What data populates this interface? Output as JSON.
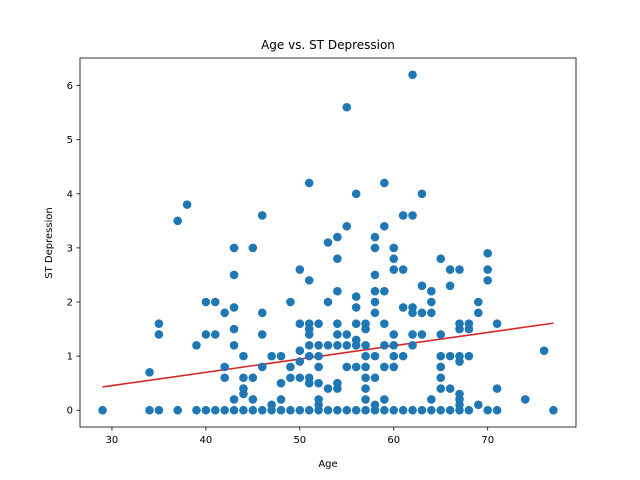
{
  "chart_data": {
    "type": "scatter",
    "title": "Age vs. ST Depression",
    "xlabel": "Age",
    "ylabel": "ST Depression",
    "xlim": [
      26.6,
      79.4
    ],
    "ylim": [
      -0.31,
      6.51
    ],
    "xticks": [
      30,
      40,
      50,
      60,
      70
    ],
    "yticks": [
      0,
      1,
      2,
      3,
      4,
      5,
      6
    ],
    "grid": false,
    "point_color": "#1f77b4",
    "trend_color": "#d62728",
    "trend_line": {
      "x": [
        29,
        77
      ],
      "y": [
        0.43,
        1.61
      ]
    },
    "points": [
      [
        29,
        0
      ],
      [
        34,
        0
      ],
      [
        34,
        0.7
      ],
      [
        35,
        0
      ],
      [
        35,
        1.4
      ],
      [
        35,
        1.6
      ],
      [
        37,
        0
      ],
      [
        37,
        3.5
      ],
      [
        38,
        3.8
      ],
      [
        39,
        0
      ],
      [
        39,
        1.2
      ],
      [
        40,
        0
      ],
      [
        40,
        1.4
      ],
      [
        40,
        2
      ],
      [
        41,
        0
      ],
      [
        41,
        1.4
      ],
      [
        41,
        2
      ],
      [
        42,
        0
      ],
      [
        42,
        0.6
      ],
      [
        42,
        0.8
      ],
      [
        42,
        1.8
      ],
      [
        43,
        0
      ],
      [
        43,
        0.2
      ],
      [
        43,
        1.2
      ],
      [
        43,
        1.5
      ],
      [
        43,
        1.9
      ],
      [
        43,
        2.5
      ],
      [
        43,
        3
      ],
      [
        44,
        0
      ],
      [
        44,
        0.3
      ],
      [
        44,
        0.4
      ],
      [
        44,
        0.6
      ],
      [
        44,
        1
      ],
      [
        45,
        0
      ],
      [
        45,
        0.2
      ],
      [
        45,
        0.6
      ],
      [
        45,
        3
      ],
      [
        46,
        0
      ],
      [
        46,
        0.8
      ],
      [
        46,
        1.4
      ],
      [
        46,
        1.8
      ],
      [
        46,
        3.6
      ],
      [
        47,
        0
      ],
      [
        47,
        0.1
      ],
      [
        47,
        1
      ],
      [
        48,
        0
      ],
      [
        48,
        0.2
      ],
      [
        48,
        0.5
      ],
      [
        48,
        1
      ],
      [
        49,
        0
      ],
      [
        49,
        0.6
      ],
      [
        49,
        0.8
      ],
      [
        49,
        2
      ],
      [
        50,
        0
      ],
      [
        50,
        0.6
      ],
      [
        50,
        0.9
      ],
      [
        50,
        1.1
      ],
      [
        50,
        1.6
      ],
      [
        50,
        2.6
      ],
      [
        51,
        0
      ],
      [
        51,
        0.5
      ],
      [
        51,
        0.6
      ],
      [
        51,
        1
      ],
      [
        51,
        1.2
      ],
      [
        51,
        1.4
      ],
      [
        51,
        1.5
      ],
      [
        51,
        1.6
      ],
      [
        51,
        2.4
      ],
      [
        51,
        4.2
      ],
      [
        52,
        0
      ],
      [
        52,
        0.1
      ],
      [
        52,
        0.2
      ],
      [
        52,
        0.5
      ],
      [
        52,
        0.8
      ],
      [
        52,
        1
      ],
      [
        52,
        1.2
      ],
      [
        52,
        1.6
      ],
      [
        53,
        0
      ],
      [
        53,
        0.4
      ],
      [
        53,
        1.2
      ],
      [
        53,
        2
      ],
      [
        53,
        3.1
      ],
      [
        54,
        0
      ],
      [
        54,
        0.4
      ],
      [
        54,
        0.5
      ],
      [
        54,
        1.2
      ],
      [
        54,
        1.4
      ],
      [
        54,
        1.6
      ],
      [
        54,
        2.2
      ],
      [
        54,
        2.8
      ],
      [
        54,
        3.2
      ],
      [
        55,
        0
      ],
      [
        55,
        0.8
      ],
      [
        55,
        1.2
      ],
      [
        55,
        1.4
      ],
      [
        55,
        3.4
      ],
      [
        55,
        5.6
      ],
      [
        56,
        0
      ],
      [
        56,
        0.8
      ],
      [
        56,
        1.2
      ],
      [
        56,
        1.3
      ],
      [
        56,
        1.6
      ],
      [
        56,
        1.9
      ],
      [
        56,
        2.1
      ],
      [
        56,
        4
      ],
      [
        57,
        0
      ],
      [
        57,
        0.2
      ],
      [
        57,
        0.4
      ],
      [
        57,
        0.6
      ],
      [
        57,
        0.8
      ],
      [
        57,
        1
      ],
      [
        57,
        1.2
      ],
      [
        57,
        1.5
      ],
      [
        57,
        1.6
      ],
      [
        58,
        0
      ],
      [
        58,
        0.1
      ],
      [
        58,
        0.6
      ],
      [
        58,
        1
      ],
      [
        58,
        1.8
      ],
      [
        58,
        2
      ],
      [
        58,
        2.2
      ],
      [
        58,
        2.5
      ],
      [
        58,
        3
      ],
      [
        58,
        3.2
      ],
      [
        59,
        0
      ],
      [
        59,
        0.2
      ],
      [
        59,
        0.8
      ],
      [
        59,
        1.2
      ],
      [
        59,
        1.6
      ],
      [
        59,
        2.2
      ],
      [
        59,
        3.4
      ],
      [
        59,
        4.2
      ],
      [
        60,
        0
      ],
      [
        60,
        0.8
      ],
      [
        60,
        1
      ],
      [
        60,
        1.2
      ],
      [
        60,
        1.4
      ],
      [
        60,
        2.6
      ],
      [
        60,
        2.8
      ],
      [
        60,
        3
      ],
      [
        61,
        0
      ],
      [
        61,
        1
      ],
      [
        61,
        1.9
      ],
      [
        61,
        2.6
      ],
      [
        61,
        3.6
      ],
      [
        62,
        0
      ],
      [
        62,
        1.2
      ],
      [
        62,
        1.4
      ],
      [
        62,
        1.8
      ],
      [
        62,
        1.9
      ],
      [
        62,
        3.6
      ],
      [
        62,
        6.2
      ],
      [
        63,
        0
      ],
      [
        63,
        1.4
      ],
      [
        63,
        1.8
      ],
      [
        63,
        2.3
      ],
      [
        63,
        4
      ],
      [
        64,
        0
      ],
      [
        64,
        0.2
      ],
      [
        64,
        1.8
      ],
      [
        64,
        2
      ],
      [
        64,
        2.2
      ],
      [
        65,
        0
      ],
      [
        65,
        0.4
      ],
      [
        65,
        0.6
      ],
      [
        65,
        0.8
      ],
      [
        65,
        1
      ],
      [
        65,
        1.4
      ],
      [
        65,
        2.8
      ],
      [
        66,
        0
      ],
      [
        66,
        0.4
      ],
      [
        66,
        1
      ],
      [
        66,
        2.3
      ],
      [
        66,
        2.6
      ],
      [
        67,
        0
      ],
      [
        67,
        0.1
      ],
      [
        67,
        0.2
      ],
      [
        67,
        0.3
      ],
      [
        67,
        0.9
      ],
      [
        67,
        1
      ],
      [
        67,
        1.5
      ],
      [
        67,
        1.6
      ],
      [
        67,
        2.6
      ],
      [
        68,
        0
      ],
      [
        68,
        1
      ],
      [
        68,
        1.5
      ],
      [
        68,
        1.6
      ],
      [
        69,
        0.1
      ],
      [
        69,
        1.8
      ],
      [
        69,
        2
      ],
      [
        70,
        0
      ],
      [
        70,
        2.4
      ],
      [
        70,
        2.6
      ],
      [
        70,
        2.9
      ],
      [
        71,
        0
      ],
      [
        71,
        0.4
      ],
      [
        71,
        1.6
      ],
      [
        74,
        0.2
      ],
      [
        76,
        1.1
      ],
      [
        77,
        0
      ]
    ]
  }
}
